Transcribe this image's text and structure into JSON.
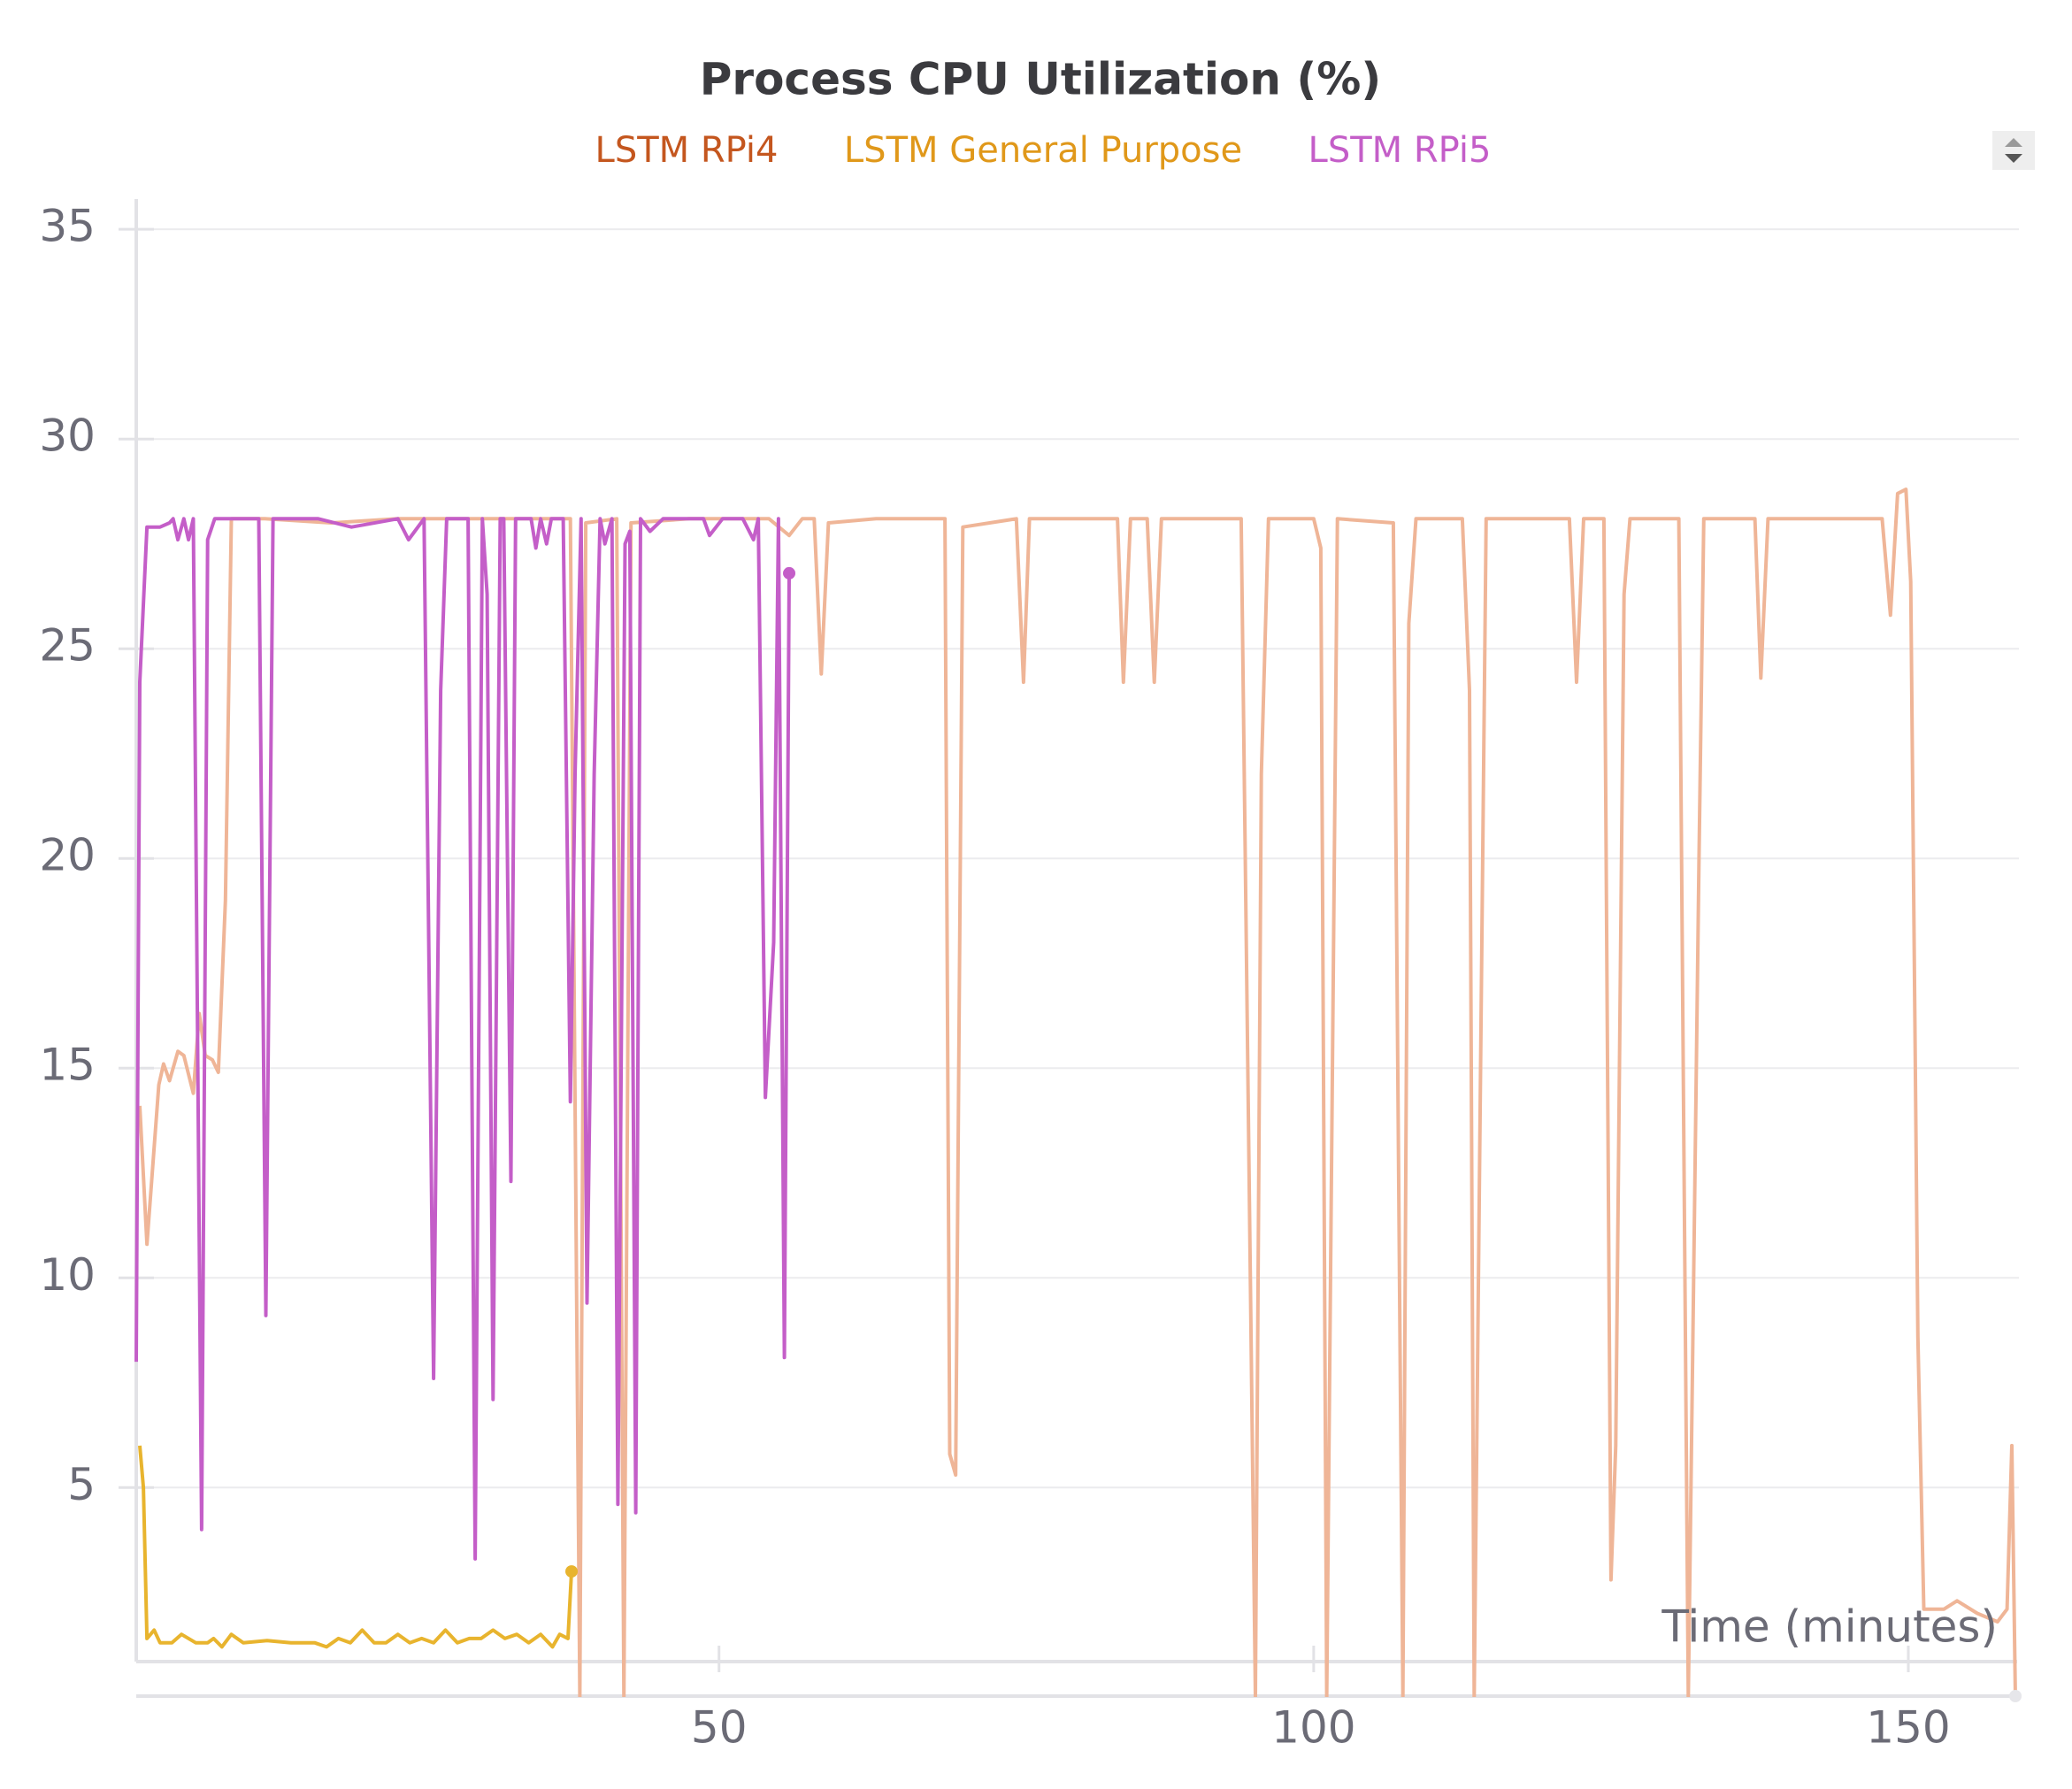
{
  "chart_data": {
    "type": "line",
    "title": "Process CPU Utilization (%)",
    "x_label": "Time (minutes)",
    "xlim": [
      1,
      159
    ],
    "ylim": [
      0.85,
      35.7
    ],
    "xticks": [
      50,
      100,
      150
    ],
    "yticks": [
      5,
      10,
      15,
      20,
      25,
      30,
      35
    ],
    "grid": true,
    "legend_position": "top",
    "series": [
      {
        "name": "LSTM RPi4",
        "color": "#efb597",
        "legend_color": "#c4561e",
        "x": [
          1.3,
          1.9,
          2.5,
          2.9,
          3.3,
          3.8,
          4.5,
          5.0,
          5.8,
          6.3,
          6.8,
          7.4,
          7.9,
          8.5,
          9.0,
          11.8,
          17.4,
          23.0,
          28.6,
          34.2,
          37.5,
          38.3,
          38.8,
          41.4,
          42.0,
          42.6,
          47.5,
          54.2,
          55.9,
          57.0,
          58.0,
          58.6,
          59.2,
          63.2,
          67.7,
          69.0,
          69.4,
          69.9,
          70.5,
          75.0,
          75.6,
          76.1,
          83.5,
          84.0,
          84.6,
          86.0,
          86.6,
          87.2,
          93.9,
          95.1,
          95.6,
          96.2,
          100.0,
          100.6,
          101.1,
          102.0,
          106.7,
          107.5,
          108.0,
          108.6,
          112.5,
          113.1,
          113.5,
          114.5,
          121.5,
          122.1,
          122.7,
          124.4,
          125.0,
          125.4,
          126.1,
          126.6,
          130.7,
          131.5,
          132.4,
          132.8,
          137.1,
          137.6,
          138.2,
          147.8,
          148.5,
          149.1,
          149.8,
          150.2,
          150.8,
          151.3,
          153.0,
          154.1,
          155.8,
          157.5,
          158.3,
          158.7,
          159.0
        ],
        "values": [
          14.1,
          10.8,
          13.1,
          14.6,
          15.1,
          14.7,
          15.4,
          15.3,
          14.4,
          16.3,
          15.3,
          15.2,
          14.9,
          19.0,
          28.1,
          28.1,
          28.0,
          28.1,
          28.1,
          28.1,
          28.1,
          0,
          28.0,
          28.1,
          0,
          28.0,
          28.1,
          28.1,
          27.7,
          28.1,
          28.1,
          24.4,
          28.0,
          28.1,
          28.1,
          28.1,
          5.8,
          5.3,
          27.9,
          28.1,
          24.2,
          28.1,
          28.1,
          24.2,
          28.1,
          28.1,
          24.2,
          28.1,
          28.1,
          0,
          22.0,
          28.1,
          28.1,
          27.4,
          0,
          28.1,
          28.0,
          0,
          25.6,
          28.1,
          28.1,
          24.0,
          0,
          28.1,
          28.1,
          24.2,
          28.1,
          28.1,
          2.8,
          6.0,
          26.3,
          28.1,
          28.1,
          0,
          20.0,
          28.1,
          28.1,
          24.3,
          28.1,
          28.1,
          25.8,
          28.7,
          28.8,
          26.6,
          8.6,
          2.1,
          2.1,
          2.3,
          2.0,
          1.8,
          2.1,
          6.0,
          0
        ]
      },
      {
        "name": "LSTM General Purpose",
        "color": "#e8b42e",
        "legend_color": "#e0981a",
        "x": [
          1.3,
          1.6,
          1.9,
          2.5,
          3.0,
          4.0,
          4.8,
          6.0,
          7.0,
          7.5,
          8.2,
          9.0,
          10.0,
          12.0,
          14.0,
          16.0,
          17.0,
          18.0,
          19.0,
          20.0,
          21.0,
          22.0,
          23.0,
          24.0,
          25.0,
          26.0,
          27.0,
          28.0,
          29.0,
          30.0,
          31.0,
          32.0,
          33.0,
          34.0,
          35.0,
          36.0,
          36.6,
          37.3,
          37.6
        ],
        "values": [
          6.0,
          5.0,
          1.4,
          1.6,
          1.3,
          1.3,
          1.5,
          1.3,
          1.3,
          1.4,
          1.2,
          1.5,
          1.3,
          1.35,
          1.3,
          1.3,
          1.2,
          1.4,
          1.3,
          1.6,
          1.3,
          1.3,
          1.5,
          1.3,
          1.4,
          1.3,
          1.6,
          1.3,
          1.4,
          1.4,
          1.6,
          1.4,
          1.5,
          1.3,
          1.5,
          1.2,
          1.5,
          1.4,
          3.0
        ]
      },
      {
        "name": "LSTM RPi5",
        "color": "#c45ec8",
        "legend_color": "#c45ec8",
        "x": [
          1.0,
          1.3,
          1.9,
          3.0,
          3.8,
          4.1,
          4.5,
          5.0,
          5.4,
          5.8,
          6.5,
          7.0,
          7.6,
          11.3,
          11.9,
          12.5,
          16.3,
          19.1,
          23.0,
          23.9,
          25.2,
          26.0,
          26.6,
          27.1,
          28.9,
          29.5,
          30.1,
          30.5,
          31.0,
          31.6,
          31.9,
          32.5,
          32.9,
          34.2,
          34.6,
          35.0,
          35.5,
          35.9,
          36.9,
          37.5,
          37.9,
          38.4,
          38.9,
          39.5,
          40.0,
          40.4,
          41.0,
          41.5,
          42.1,
          42.5,
          43.0,
          43.4,
          44.2,
          45.3,
          48.7,
          49.2,
          50.3,
          52.0,
          52.9,
          53.3,
          53.9,
          54.6,
          55.0,
          55.5,
          55.9
        ],
        "values": [
          8.0,
          24.2,
          27.9,
          27.9,
          28.0,
          28.1,
          27.6,
          28.1,
          27.6,
          28.1,
          4.0,
          27.6,
          28.1,
          28.1,
          9.1,
          28.1,
          28.1,
          27.9,
          28.1,
          27.6,
          28.1,
          7.6,
          24.0,
          28.1,
          28.1,
          3.3,
          28.1,
          26.3,
          7.1,
          28.1,
          28.1,
          12.3,
          28.1,
          28.1,
          27.4,
          28.1,
          27.5,
          28.1,
          28.1,
          14.2,
          22.0,
          28.1,
          9.4,
          22.0,
          28.1,
          27.5,
          28.1,
          4.6,
          27.5,
          27.8,
          4.4,
          28.1,
          27.8,
          28.1,
          28.1,
          27.7,
          28.1,
          28.1,
          27.6,
          28.1,
          14.3,
          18.0,
          28.1,
          8.1,
          26.8
        ]
      }
    ]
  }
}
